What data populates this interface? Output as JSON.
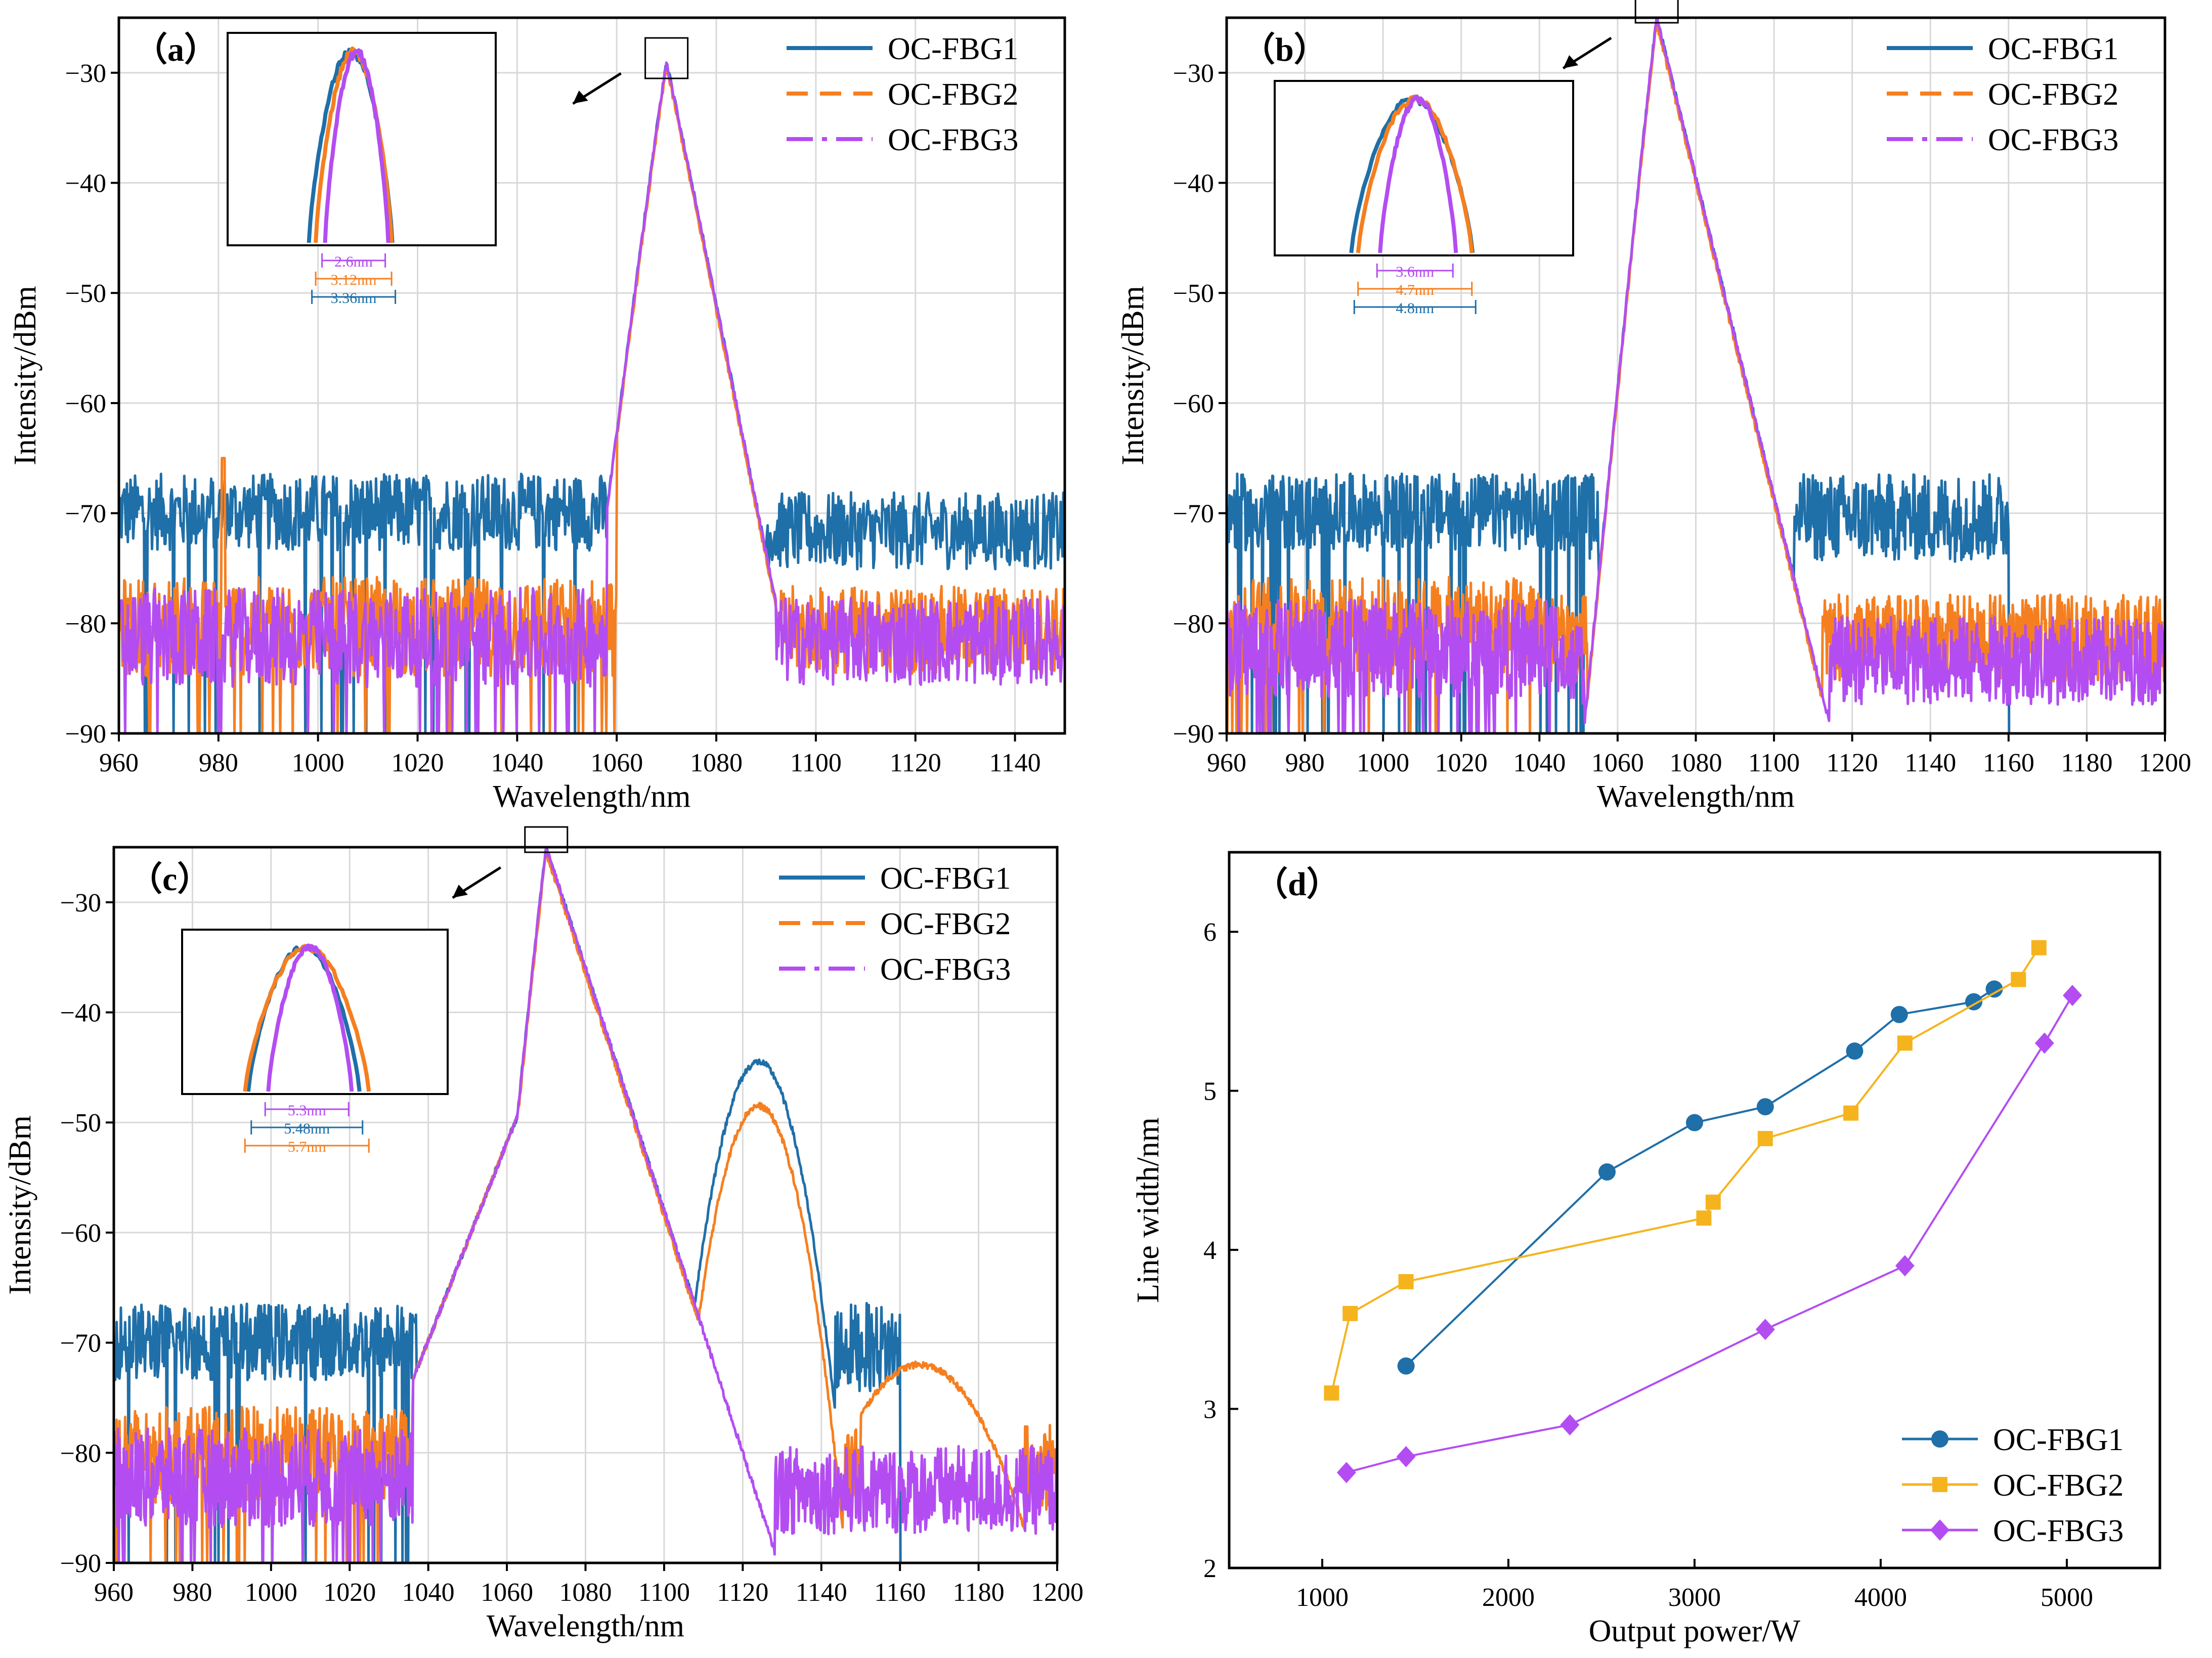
{
  "figure": {
    "background": "#ffffff"
  },
  "colors": {
    "OC-FBG1": "#1f6fa8",
    "OC-FBG2": "#f57f20",
    "OC-FBG3": "#b34df2",
    "d_OC-FBG2": "#f5b41e",
    "axis": "#000000",
    "grid": "#d9d9d9"
  },
  "chart_data": [
    {
      "id": "a",
      "type": "line",
      "label": "（a）",
      "xlabel": "Wavelength/nm",
      "ylabel": "Intensity/dBm",
      "xlim": [
        960,
        1150
      ],
      "ylim": [
        -90,
        -25
      ],
      "xticks": [
        960,
        980,
        1000,
        1020,
        1040,
        1060,
        1080,
        1100,
        1120,
        1140
      ],
      "yticks": [
        -90,
        -80,
        -70,
        -60,
        -50,
        -40,
        -30
      ],
      "grid": true,
      "legend_position": "top-right",
      "series": [
        {
          "name": "OC-FBG1",
          "peak": 1070,
          "peak_dbm": -29,
          "noise_floor_dbm": -72,
          "support": [
            1058,
            1090
          ]
        },
        {
          "name": "OC-FBG2",
          "peak": 1070,
          "peak_dbm": -29.5,
          "noise_floor_dbm": -83,
          "support": [
            1060,
            1093
          ],
          "spike_nm": 981,
          "spike_dbm": -65
        },
        {
          "name": "OC-FBG3",
          "peak": 1070,
          "peak_dbm": -29,
          "noise_floor_dbm": -84,
          "support": [
            1058,
            1092
          ]
        }
      ],
      "inset_widths": [
        {
          "series": "OC-FBG3",
          "label": "2.6nm"
        },
        {
          "series": "OC-FBG2",
          "label": "3.12nm"
        },
        {
          "series": "OC-FBG1",
          "label": "3.36nm"
        }
      ]
    },
    {
      "id": "b",
      "type": "line",
      "label": "（b）",
      "xlabel": "Wavelength/nm",
      "ylabel": "Intensity/dBm",
      "xlim": [
        960,
        1200
      ],
      "ylim": [
        -90,
        -25
      ],
      "xticks": [
        960,
        980,
        1000,
        1020,
        1040,
        1060,
        1080,
        1100,
        1120,
        1140,
        1160,
        1180,
        1200
      ],
      "yticks": [
        -90,
        -80,
        -70,
        -60,
        -50,
        -40,
        -30
      ],
      "grid": true,
      "legend_position": "top-right",
      "series": [
        {
          "name": "OC-FBG1",
          "peak": 1070,
          "peak_dbm": -25,
          "noise_floor_dbm": -72,
          "support": [
            1052,
            1160
          ]
        },
        {
          "name": "OC-FBG2",
          "peak": 1070,
          "peak_dbm": -25.5,
          "noise_floor_dbm": -83,
          "support": [
            1042,
            1200
          ]
        },
        {
          "name": "OC-FBG3",
          "peak": 1070,
          "peak_dbm": -25,
          "noise_floor_dbm": -85,
          "support": [
            1045,
            1200
          ]
        }
      ],
      "inset_widths": [
        {
          "series": "OC-FBG3",
          "label": "3.6nm"
        },
        {
          "series": "OC-FBG2",
          "label": "4.7nm"
        },
        {
          "series": "OC-FBG1",
          "label": "4.8nm"
        }
      ]
    },
    {
      "id": "c",
      "type": "line",
      "label": "（c）",
      "xlabel": "Wavelength/nm",
      "ylabel": "Intensity/dBm",
      "xlim": [
        960,
        1200
      ],
      "ylim": [
        -90,
        -25
      ],
      "xticks": [
        960,
        980,
        1000,
        1020,
        1040,
        1060,
        1080,
        1100,
        1120,
        1140,
        1160,
        1180,
        1200
      ],
      "yticks": [
        -90,
        -80,
        -70,
        -60,
        -50,
        -40,
        -30
      ],
      "grid": true,
      "legend_position": "top-right",
      "series": [
        {
          "name": "OC-FBG1",
          "peak": 1070,
          "peak_dbm": -25,
          "secondary_peak": 1124,
          "secondary_dbm": -44.5,
          "noise_floor_dbm": -72,
          "support": [
            1037,
            1160
          ]
        },
        {
          "name": "OC-FBG2",
          "peak": 1070,
          "peak_dbm": -25.5,
          "secondary_peak": 1124,
          "secondary_dbm": -48.5,
          "noise_floor_dbm": -83,
          "support": [
            1036,
            1200
          ]
        },
        {
          "name": "OC-FBG3",
          "peak": 1070,
          "peak_dbm": -25,
          "noise_floor_dbm": -85,
          "support": [
            1036,
            1200
          ]
        }
      ],
      "inset_widths": [
        {
          "series": "OC-FBG3",
          "label": "5.3nm"
        },
        {
          "series": "OC-FBG1",
          "label": "5.48nm"
        },
        {
          "series": "OC-FBG2",
          "label": "5.7nm"
        }
      ]
    },
    {
      "id": "d",
      "type": "line",
      "label": "（d）",
      "xlabel": "Output power/W",
      "ylabel": "Line width/nm",
      "xlim": [
        500,
        5500
      ],
      "ylim": [
        2,
        6.5
      ],
      "xticks": [
        1000,
        2000,
        3000,
        4000,
        5000
      ],
      "yticks": [
        2,
        3,
        4,
        5,
        6
      ],
      "grid": false,
      "legend_position": "bottom-right",
      "series": [
        {
          "name": "OC-FBG1",
          "marker": "circle",
          "x": [
            1450,
            2530,
            3000,
            3380,
            3860,
            4100,
            4500,
            4610
          ],
          "y": [
            3.27,
            4.49,
            4.8,
            4.9,
            5.25,
            5.48,
            5.56,
            5.64
          ]
        },
        {
          "name": "OC-FBG2",
          "marker": "square",
          "x": [
            1050,
            1150,
            1450,
            3050,
            3100,
            3380,
            3840,
            4130,
            4740,
            4850
          ],
          "y": [
            3.1,
            3.6,
            3.8,
            4.2,
            4.3,
            4.7,
            4.86,
            5.3,
            5.7,
            5.9
          ]
        },
        {
          "name": "OC-FBG3",
          "marker": "diamond",
          "x": [
            1130,
            1450,
            2330,
            3380,
            4130,
            4880,
            5030
          ],
          "y": [
            2.6,
            2.7,
            2.9,
            3.5,
            3.9,
            5.3,
            5.6
          ]
        }
      ]
    }
  ]
}
